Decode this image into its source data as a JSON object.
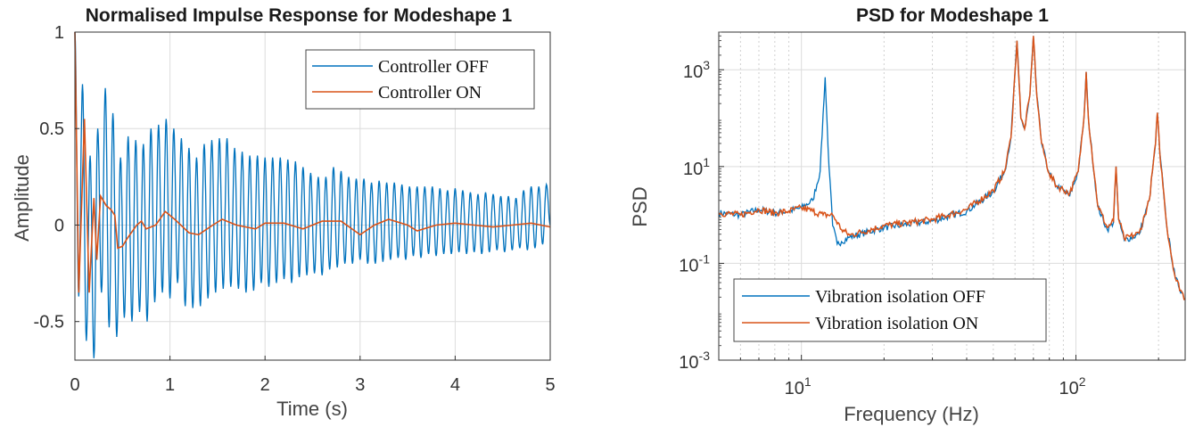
{
  "chart_data": [
    {
      "type": "line",
      "title": "Normalised Impulse Response for Modeshape 1",
      "xlabel": "Time (s)",
      "ylabel": "Amplitude",
      "xlim": [
        0,
        5
      ],
      "ylim": [
        -0.7,
        1
      ],
      "xticks": [
        0,
        1,
        2,
        3,
        4,
        5
      ],
      "xtick_labels": [
        "0",
        "1",
        "2",
        "3",
        "4",
        "5"
      ],
      "yticks": [
        1,
        0.5,
        0,
        -0.5
      ],
      "ytick_labels": [
        "1",
        "0.5",
        "0",
        "-0.5"
      ],
      "grid": true,
      "legend_placement": "top-right",
      "series": [
        {
          "name": "Controller OFF",
          "color": "#0072BD",
          "t0": 0,
          "dt": 0.04,
          "extrema": [
            1.0,
            -0.37,
            0.73,
            -0.6,
            0.36,
            -0.69,
            0.5,
            -0.35,
            0.71,
            -0.53,
            0.58,
            -0.58,
            0.35,
            -0.48,
            0.46,
            -0.5,
            0.44,
            -0.45,
            0.42,
            -0.5,
            0.5,
            -0.4,
            0.52,
            -0.35,
            0.55,
            -0.38,
            0.5,
            -0.3,
            0.45,
            -0.42,
            0.4,
            -0.43,
            0.35,
            -0.42,
            0.42,
            -0.38,
            0.44,
            -0.35,
            0.45,
            -0.33,
            0.45,
            -0.32,
            0.4,
            -0.33,
            0.38,
            -0.35,
            0.36,
            -0.34,
            0.36,
            -0.3,
            0.35,
            -0.32,
            0.35,
            -0.3,
            0.35,
            -0.28,
            0.34,
            -0.3,
            0.33,
            -0.27,
            0.3,
            -0.26,
            0.27,
            -0.25,
            0.25,
            -0.26,
            0.25,
            -0.23,
            0.3,
            -0.22,
            0.28,
            -0.2,
            0.25,
            -0.2,
            0.24,
            -0.18,
            0.24,
            -0.2,
            0.22,
            -0.2,
            0.23,
            -0.19,
            0.22,
            -0.18,
            0.22,
            -0.17,
            0.21,
            -0.18,
            0.2,
            -0.16,
            0.2,
            -0.17,
            0.2,
            -0.15,
            0.2,
            -0.16,
            0.19,
            -0.15,
            0.18,
            -0.15,
            0.19,
            -0.14,
            0.18,
            -0.15,
            0.17,
            -0.14,
            0.16,
            -0.15,
            0.17,
            -0.14,
            0.16,
            -0.13,
            0.15,
            -0.14,
            0.15,
            -0.13,
            0.14,
            -0.12,
            0.18,
            -0.13,
            0.2,
            -0.12,
            0.2,
            -0.1,
            0.21,
            0.0
          ]
        },
        {
          "name": "Controller ON",
          "color": "#D95319",
          "x": [
            0,
            0.04,
            0.1,
            0.15,
            0.2,
            0.23,
            0.27,
            0.33,
            0.38,
            0.42,
            0.45,
            0.5,
            0.55,
            0.65,
            0.7,
            0.75,
            0.85,
            0.95,
            1.05,
            1.2,
            1.3,
            1.45,
            1.55,
            1.7,
            1.9,
            2.0,
            2.2,
            2.4,
            2.6,
            2.8,
            3.0,
            3.15,
            3.3,
            3.5,
            3.6,
            3.8,
            4.0,
            4.2,
            4.4,
            4.6,
            4.8,
            5.0
          ],
          "y": [
            1,
            -0.35,
            0.55,
            -0.35,
            0.14,
            -0.18,
            0.15,
            0.1,
            0.08,
            0.05,
            -0.12,
            -0.11,
            -0.07,
            0,
            0.02,
            -0.02,
            0,
            0.07,
            0.03,
            -0.04,
            -0.05,
            0,
            0.03,
            0,
            -0.02,
            0.01,
            0.01,
            -0.02,
            0.02,
            0.02,
            -0.05,
            0,
            0.03,
            0,
            -0.03,
            0,
            0.01,
            0,
            -0.01,
            0,
            0.01,
            -0.01
          ]
        }
      ]
    },
    {
      "type": "line",
      "title": "PSD for Modeshape 1",
      "xlabel": "Frequency (Hz)",
      "ylabel": "PSD",
      "xscale": "log",
      "yscale": "log",
      "xlim": [
        5,
        250
      ],
      "ylim": [
        0.001,
        6000
      ],
      "xtick_labels": [
        {
          "base": "10",
          "exp": "1"
        },
        {
          "base": "10",
          "exp": "2"
        }
      ],
      "xticks": [
        10,
        100
      ],
      "ytick_labels": [
        {
          "base": "10",
          "exp": "3"
        },
        {
          "base": "10",
          "exp": "1"
        },
        {
          "base": "10",
          "exp": "-1"
        },
        {
          "base": "10",
          "exp": "-3"
        }
      ],
      "yticks": [
        1000,
        10,
        0.1,
        0.001
      ],
      "grid": true,
      "minor_grid": true,
      "legend_placement": "bottom-left",
      "series": [
        {
          "name": "Vibration isolation OFF",
          "color": "#0072BD",
          "x": [
            5,
            6,
            7,
            8,
            9,
            10,
            11,
            11.7,
            12.2,
            12.6,
            13,
            13.5,
            14,
            15,
            20,
            30,
            40,
            50,
            55,
            58,
            61,
            63,
            65,
            68,
            70,
            72,
            75,
            80,
            85,
            95,
            102,
            107,
            109,
            111,
            120,
            130,
            137,
            140,
            143,
            150,
            170,
            185,
            195,
            198,
            202,
            215,
            230,
            250
          ],
          "y": [
            1.1,
            1.0,
            1.3,
            1.1,
            1.2,
            1.4,
            2,
            8,
            700,
            10,
            0.6,
            0.25,
            0.28,
            0.35,
            0.55,
            0.75,
            1.2,
            3,
            8,
            40,
            4000,
            100,
            60,
            300,
            5000,
            300,
            30,
            7,
            4,
            2.5,
            8,
            100,
            900,
            100,
            1.5,
            0.5,
            0.7,
            10,
            0.8,
            0.3,
            0.4,
            2,
            30,
            130,
            20,
            0.5,
            0.05,
            0.018
          ]
        },
        {
          "name": "Vibration isolation ON",
          "color": "#D95319",
          "x": [
            5,
            6,
            7,
            8,
            9,
            10,
            11,
            12,
            13,
            14,
            15,
            20,
            30,
            40,
            50,
            55,
            58,
            61,
            63,
            65,
            68,
            70,
            72,
            75,
            80,
            85,
            95,
            102,
            107,
            109,
            111,
            120,
            130,
            137,
            140,
            143,
            150,
            170,
            185,
            195,
            198,
            202,
            215,
            230,
            250
          ],
          "y": [
            1.1,
            1.0,
            1.3,
            1.1,
            1.2,
            1.4,
            1.2,
            1.0,
            1.0,
            0.5,
            0.38,
            0.6,
            0.8,
            1.3,
            3.2,
            8,
            40,
            4000,
            100,
            60,
            300,
            5000,
            300,
            30,
            7,
            4,
            2.8,
            8,
            100,
            900,
            100,
            1.6,
            0.55,
            0.75,
            10,
            0.85,
            0.32,
            0.42,
            2,
            30,
            130,
            20,
            0.5,
            0.05,
            0.018
          ]
        }
      ]
    }
  ]
}
